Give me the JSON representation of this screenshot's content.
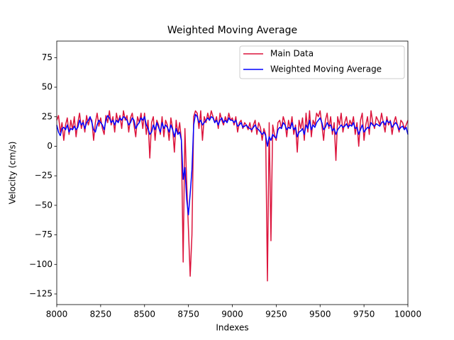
{
  "chart_data": {
    "type": "line",
    "title": "Weighted Moving Average",
    "xlabel": "Indexes",
    "ylabel": "Velocity (cm/s)",
    "x": [
      8000,
      8010,
      8020,
      8030,
      8040,
      8050,
      8060,
      8070,
      8080,
      8090,
      8100,
      8110,
      8120,
      8130,
      8140,
      8150,
      8160,
      8170,
      8180,
      8190,
      8200,
      8210,
      8220,
      8230,
      8240,
      8250,
      8260,
      8270,
      8280,
      8290,
      8300,
      8310,
      8320,
      8330,
      8340,
      8350,
      8360,
      8370,
      8380,
      8390,
      8400,
      8410,
      8420,
      8430,
      8440,
      8450,
      8460,
      8470,
      8480,
      8490,
      8500,
      8510,
      8520,
      8530,
      8540,
      8550,
      8560,
      8570,
      8580,
      8590,
      8600,
      8610,
      8620,
      8630,
      8640,
      8650,
      8660,
      8670,
      8680,
      8690,
      8700,
      8710,
      8720,
      8730,
      8740,
      8750,
      8760,
      8770,
      8780,
      8790,
      8800,
      8810,
      8820,
      8830,
      8840,
      8850,
      8860,
      8870,
      8880,
      8890,
      8900,
      8910,
      8920,
      8930,
      8940,
      8950,
      8960,
      8970,
      8980,
      8990,
      9000,
      9010,
      9020,
      9030,
      9040,
      9050,
      9060,
      9070,
      9080,
      9090,
      9100,
      9110,
      9120,
      9130,
      9140,
      9150,
      9160,
      9170,
      9180,
      9190,
      9200,
      9210,
      9220,
      9230,
      9240,
      9250,
      9260,
      9270,
      9280,
      9290,
      9300,
      9310,
      9320,
      9330,
      9340,
      9350,
      9360,
      9370,
      9380,
      9390,
      9400,
      9410,
      9420,
      9430,
      9440,
      9450,
      9460,
      9470,
      9480,
      9490,
      9500,
      9510,
      9520,
      9530,
      9540,
      9550,
      9560,
      9570,
      9580,
      9590,
      9600,
      9610,
      9620,
      9630,
      9640,
      9650,
      9660,
      9670,
      9680,
      9690,
      9700,
      9710,
      9720,
      9730,
      9740,
      9750,
      9760,
      9770,
      9780,
      9790,
      9800,
      9810,
      9820,
      9830,
      9840,
      9850,
      9860,
      9870,
      9880,
      9890,
      9900,
      9910,
      9920,
      9930,
      9940,
      9950,
      9960,
      9970,
      9980,
      9990,
      10000
    ],
    "series": [
      {
        "name": "Main Data",
        "color": "#dc143c",
        "values": [
          22,
          26,
          12,
          20,
          5,
          18,
          24,
          10,
          22,
          14,
          25,
          8,
          20,
          28,
          15,
          22,
          12,
          26,
          18,
          24,
          22,
          5,
          20,
          28,
          17,
          24,
          15,
          10,
          26,
          20,
          30,
          18,
          25,
          12,
          28,
          20,
          26,
          15,
          30,
          22,
          26,
          12,
          24,
          28,
          18,
          8,
          25,
          20,
          28,
          15,
          28,
          10,
          22,
          -10,
          20,
          25,
          5,
          22,
          18,
          10,
          25,
          8,
          22,
          18,
          5,
          24,
          15,
          -5,
          22,
          10,
          20,
          5,
          -98,
          15,
          -30,
          -70,
          -110,
          -75,
          25,
          30,
          28,
          15,
          30,
          5,
          25,
          20,
          28,
          22,
          30,
          25,
          20,
          25,
          15,
          28,
          22,
          18,
          25,
          20,
          28,
          22,
          24,
          18,
          25,
          12,
          20,
          22,
          15,
          20,
          18,
          14,
          20,
          12,
          18,
          22,
          10,
          20,
          16,
          5,
          15,
          10,
          -114,
          20,
          -80,
          18,
          10,
          5,
          20,
          22,
          15,
          25,
          20,
          8,
          22,
          15,
          25,
          10,
          18,
          -5,
          22,
          15,
          24,
          5,
          28,
          12,
          30,
          8,
          22,
          18,
          28,
          25,
          30,
          18,
          5,
          22,
          28,
          15,
          25,
          10,
          20,
          -12,
          25,
          18,
          28,
          12,
          20,
          25,
          15,
          22,
          18,
          25,
          10,
          20,
          0,
          22,
          28,
          5,
          18,
          25,
          10,
          30,
          20,
          15,
          25,
          22,
          18,
          28,
          20,
          12,
          25,
          18,
          22,
          10,
          20,
          25,
          18,
          12,
          22,
          20,
          15,
          18,
          22
        ]
      },
      {
        "name": "Weighted Moving Average",
        "color": "#0000ff",
        "values": [
          18,
          12,
          9,
          15,
          16,
          14,
          18,
          12,
          15,
          14,
          17,
          14,
          16,
          22,
          18,
          20,
          15,
          20,
          22,
          25,
          20,
          14,
          12,
          18,
          22,
          20,
          18,
          14,
          22,
          26,
          24,
          20,
          22,
          18,
          22,
          20,
          24,
          22,
          25,
          24,
          22,
          18,
          20,
          24,
          22,
          15,
          18,
          20,
          24,
          22,
          25,
          18,
          15,
          10,
          12,
          18,
          14,
          20,
          16,
          12,
          20,
          15,
          18,
          16,
          12,
          18,
          14,
          8,
          15,
          10,
          12,
          5,
          -28,
          -18,
          -45,
          -58,
          -40,
          -20,
          18,
          27,
          25,
          20,
          22,
          18,
          20,
          22,
          24,
          22,
          25,
          24,
          20,
          22,
          18,
          22,
          24,
          20,
          22,
          20,
          24,
          22,
          22,
          20,
          22,
          17,
          18,
          20,
          16,
          17,
          18,
          16,
          15,
          14,
          16,
          18,
          15,
          14,
          12,
          10,
          12,
          9,
          0,
          8,
          5,
          10,
          8,
          7,
          14,
          16,
          15,
          20,
          18,
          14,
          16,
          15,
          20,
          14,
          16,
          8,
          12,
          13,
          15,
          10,
          18,
          15,
          22,
          14,
          18,
          16,
          20,
          22,
          24,
          20,
          14,
          16,
          20,
          17,
          18,
          13,
          15,
          10,
          14,
          16,
          18,
          16,
          17,
          19,
          16,
          18,
          17,
          20,
          15,
          16,
          10,
          14,
          18,
          12,
          14,
          16,
          15,
          20,
          18,
          17,
          19,
          18,
          17,
          20,
          21,
          18,
          22,
          20,
          21,
          16,
          18,
          20,
          18,
          14,
          16,
          17,
          14,
          16,
          10
        ]
      }
    ],
    "xlim": [
      8000,
      10000
    ],
    "xticks": [
      8000,
      8250,
      8500,
      8750,
      9000,
      9250,
      9500,
      9750,
      10000
    ],
    "ylim": [
      -134,
      89
    ],
    "yticks": [
      {
        "value": -125,
        "label": "−125"
      },
      {
        "value": -100,
        "label": "−100"
      },
      {
        "value": -75,
        "label": "−75"
      },
      {
        "value": -50,
        "label": "−50"
      },
      {
        "value": -25,
        "label": "−25"
      },
      0,
      25,
      50,
      75
    ],
    "legend": "upper right"
  }
}
